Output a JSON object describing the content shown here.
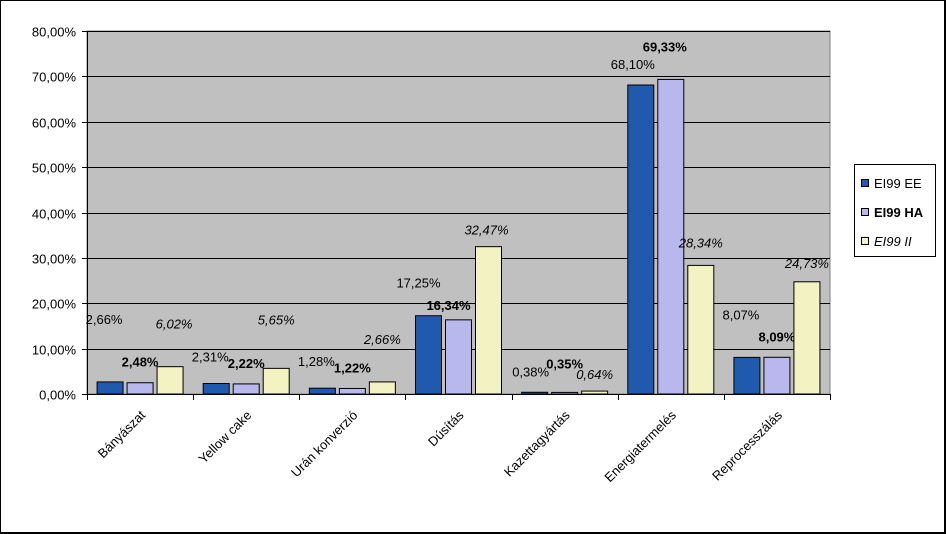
{
  "chart_data": {
    "type": "bar",
    "categories": [
      "Bányászat",
      "Yellow cake",
      "Urán konverzió",
      "Dúsítás",
      "Kazettagyártás",
      "Energiatermelés",
      "Reprocesszálás"
    ],
    "series": [
      {
        "name": "EI99 EE",
        "values": [
          2.66,
          2.31,
          1.28,
          17.25,
          0.38,
          68.1,
          8.07
        ],
        "labels": [
          "2,66%",
          "2,31%",
          "1,28%",
          "17,25%",
          "0,38%",
          "68,10%",
          "8,07%"
        ],
        "color": "#1F5AAE",
        "label_style": "normal"
      },
      {
        "name": "EI99 HA",
        "values": [
          2.48,
          2.22,
          1.22,
          16.34,
          0.35,
          69.33,
          8.09
        ],
        "labels": [
          "2,48%",
          "2,22%",
          "1,22%",
          "16,34%",
          "0,35%",
          "69,33%",
          "8,09%"
        ],
        "color": "#B8B8EE",
        "label_style": "bold"
      },
      {
        "name": "EI99 II",
        "values": [
          6.02,
          5.65,
          2.66,
          32.47,
          0.64,
          28.34,
          24.73
        ],
        "labels": [
          "6,02%",
          "5,65%",
          "2,66%",
          "32,47%",
          "0,64%",
          "28,34%",
          "24,73%"
        ],
        "color": "#F2F2C2",
        "label_style": "italic"
      }
    ],
    "y_ticks": [
      "0,00%",
      "10,00%",
      "20,00%",
      "30,00%",
      "40,00%",
      "50,00%",
      "60,00%",
      "70,00%",
      "80,00%"
    ],
    "ylim": [
      0,
      80
    ],
    "grid": true,
    "plot_background": "#C0C0C0",
    "legend_position": "right",
    "title": "",
    "xlabel": "",
    "ylabel": ""
  }
}
